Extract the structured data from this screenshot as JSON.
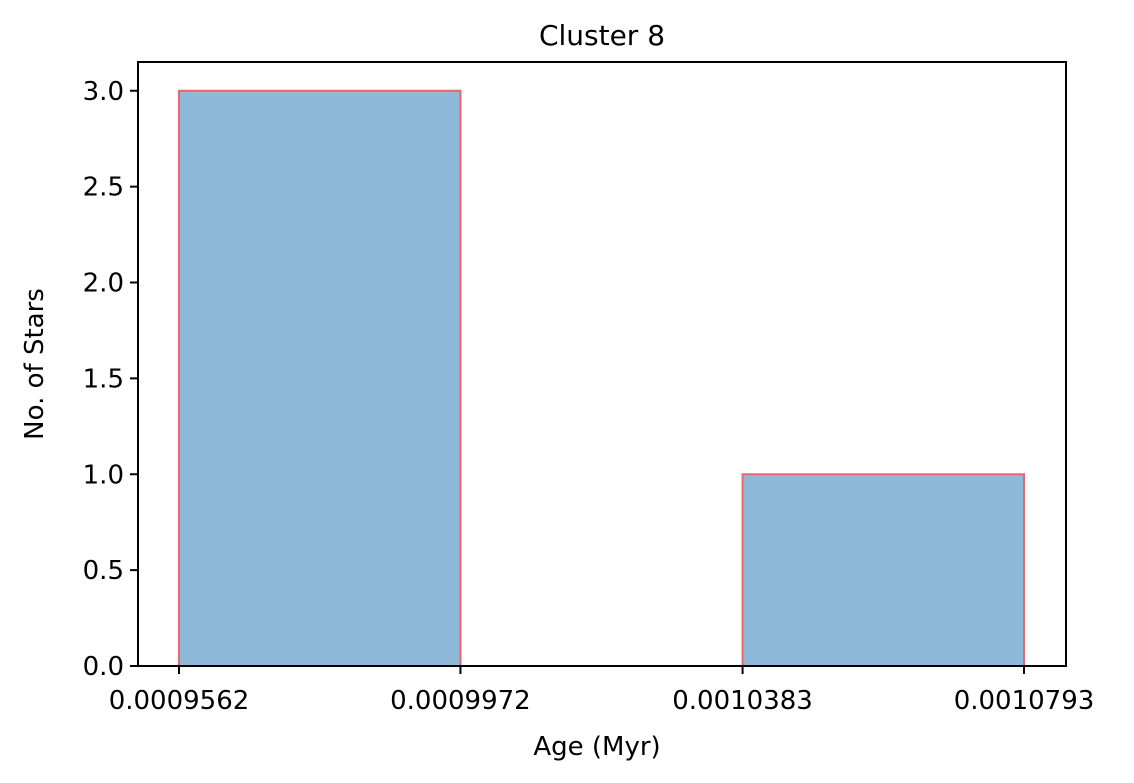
{
  "chart_data": {
    "type": "bar",
    "title": "Cluster 8",
    "xlabel": "Age (Myr)",
    "ylabel": "No. of Stars",
    "bins": [
      {
        "start": 0.0009562,
        "end": 0.0009972,
        "count": 3
      },
      {
        "start": 0.0009972,
        "end": 0.0010383,
        "count": 0
      },
      {
        "start": 0.0010383,
        "end": 0.0010793,
        "count": 1
      }
    ],
    "xticks": [
      "0.0009562",
      "0.0009972",
      "0.0010383",
      "0.0010793"
    ],
    "yticks": [
      "0.0",
      "0.5",
      "1.0",
      "1.5",
      "2.0",
      "2.5",
      "3.0"
    ],
    "ytick_values": [
      0,
      0.5,
      1.0,
      1.5,
      2.0,
      2.5,
      3.0
    ],
    "ylim": [
      0,
      3.15
    ],
    "grid": false,
    "colors": {
      "bar_fill": "#8fb9d8",
      "bar_edge": "#e8676c",
      "axis": "#000000"
    }
  }
}
